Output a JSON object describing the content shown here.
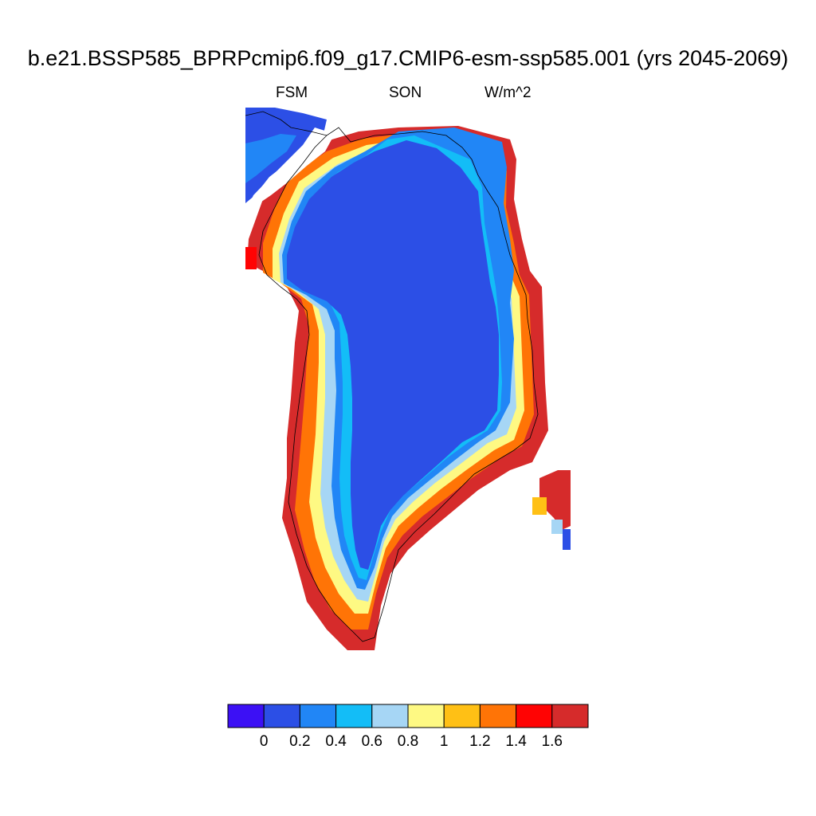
{
  "title": "b.e21.BSSP585_BPRPcmip6.f09_g17.CMIP6-esm-ssp585.001 (yrs 2045-2069)",
  "subtitle_left": "FSM",
  "subtitle_center": "SON",
  "subtitle_right": "W/m^2",
  "colorbar": {
    "colors": [
      "#3c10f5",
      "#2c4fe6",
      "#2186f6",
      "#13bdf7",
      "#a6d6f5",
      "#fef983",
      "#ffc015",
      "#ff7406",
      "#ff0303",
      "#d62b2b"
    ],
    "tick_labels": [
      "0",
      "0.2",
      "0.4",
      "0.6",
      "0.8",
      "1",
      "1.2",
      "1.4",
      "1.6"
    ]
  }
}
